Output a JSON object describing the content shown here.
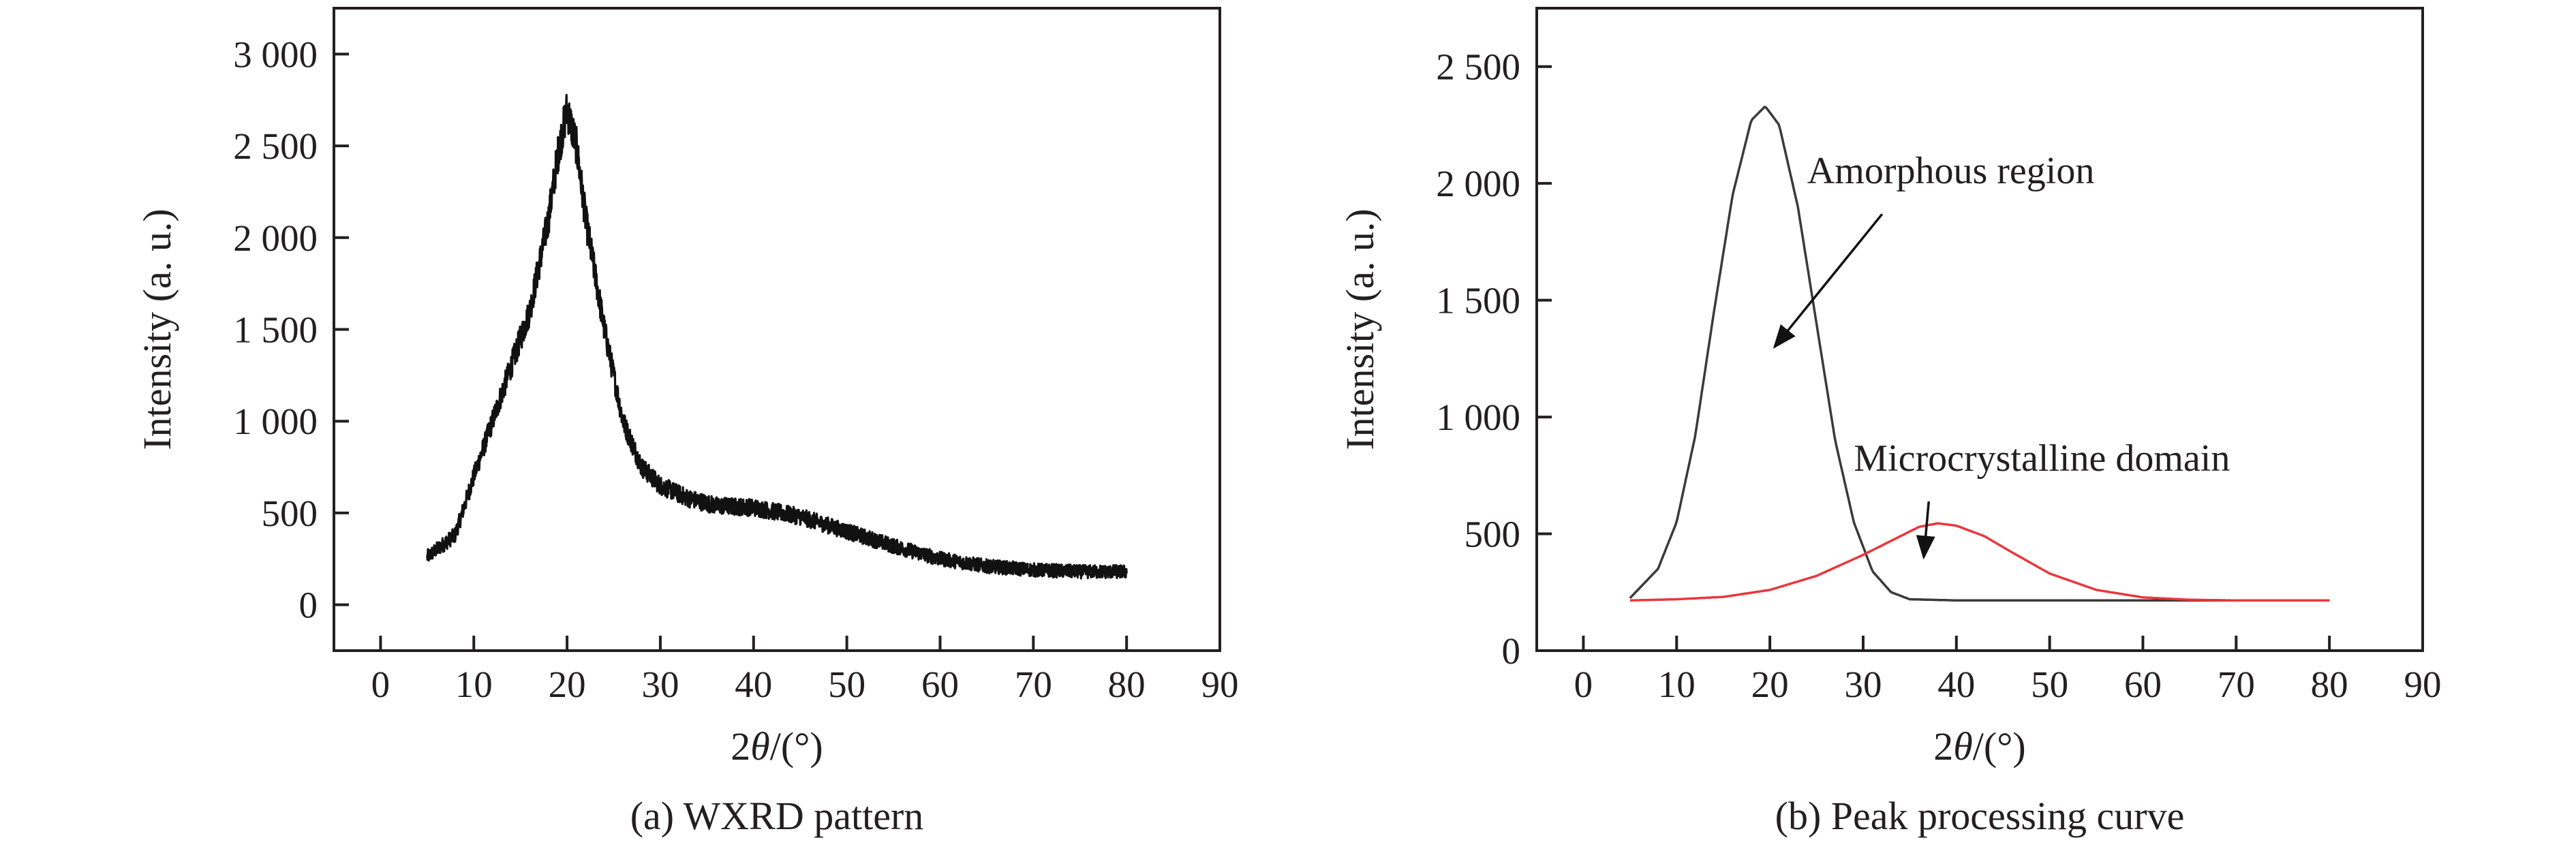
{
  "chart_data": [
    {
      "type": "line",
      "caption": "(a) WXRD pattern",
      "xlabel_prefix": "2",
      "xlabel_var": "θ",
      "xlabel_suffix": "/(°)",
      "ylabel": "Intensity (a. u.)",
      "xlim": [
        -5,
        90
      ],
      "ylim": [
        -250,
        3250
      ],
      "xticks": [
        0,
        10,
        20,
        30,
        40,
        50,
        60,
        70,
        80,
        90
      ],
      "xtick_labels": [
        "0",
        "10",
        "20",
        "30",
        "40",
        "50",
        "60",
        "70",
        "80",
        "90"
      ],
      "yticks": [
        0,
        500,
        1000,
        1500,
        2000,
        2500,
        3000
      ],
      "ytick_labels": [
        "0",
        "500",
        "1 000",
        "1 500",
        "2 000",
        "2 500",
        "3 000"
      ],
      "grid": false,
      "series": [
        {
          "color": "#111111",
          "x": [
            5,
            8,
            10,
            12,
            14,
            16,
            18,
            19,
            20,
            21,
            22,
            24,
            26,
            28,
            30,
            33,
            36,
            40,
            45,
            50,
            55,
            60,
            65,
            70,
            75,
            80
          ],
          "y": [
            260,
            380,
            700,
            1000,
            1300,
            1600,
            2100,
            2450,
            2700,
            2500,
            2100,
            1500,
            1000,
            750,
            650,
            580,
            540,
            530,
            480,
            400,
            320,
            250,
            210,
            190,
            180,
            180
          ],
          "noise_band": 90
        }
      ]
    },
    {
      "type": "line",
      "caption": "(b) Peak processing curve",
      "xlabel_prefix": "2",
      "xlabel_var": "θ",
      "xlabel_suffix": "/(°)",
      "ylabel": "Intensity (a. u.)",
      "xlim": [
        -5,
        90
      ],
      "ylim": [
        0,
        2750
      ],
      "xticks": [
        0,
        10,
        20,
        30,
        40,
        50,
        60,
        70,
        80,
        90
      ],
      "xtick_labels": [
        "0",
        "10",
        "20",
        "30",
        "40",
        "50",
        "60",
        "70",
        "80",
        "90"
      ],
      "yticks": [
        0,
        500,
        1000,
        1500,
        2000,
        2500
      ],
      "ytick_labels": [
        "0",
        "500",
        "1 000",
        "1 500",
        "2 000",
        "2 500"
      ],
      "grid": false,
      "series": [
        {
          "color": "#3a3a3a",
          "x": [
            5,
            8,
            10,
            12,
            14,
            16,
            18,
            19.5,
            21,
            23,
            25,
            27,
            29,
            31,
            33,
            35,
            40,
            50,
            60,
            70,
            80
          ],
          "y": [
            225,
            350,
            550,
            920,
            1450,
            1950,
            2270,
            2330,
            2250,
            1900,
            1400,
            900,
            550,
            340,
            250,
            220,
            215,
            215,
            215,
            215,
            215
          ],
          "label_ref": "Amorphous region"
        },
        {
          "color": "#e8383d",
          "x": [
            5,
            10,
            15,
            20,
            25,
            30,
            33,
            36,
            38,
            40,
            43,
            46,
            50,
            55,
            60,
            65,
            70,
            80
          ],
          "y": [
            215,
            220,
            230,
            260,
            320,
            410,
            470,
            530,
            545,
            535,
            490,
            420,
            330,
            260,
            228,
            218,
            215,
            215
          ],
          "label_ref": "Microcrystalline domain"
        }
      ],
      "annotations": [
        {
          "text": "Amorphous region",
          "x_text": 24,
          "y_text": 2000,
          "x_arrow_end": 20.5,
          "y_arrow_end": 1300
        },
        {
          "text": "Microcrystalline domain",
          "x_text": 29,
          "y_text": 770,
          "x_arrow_end": 36.5,
          "y_arrow_end": 400
        }
      ]
    }
  ]
}
